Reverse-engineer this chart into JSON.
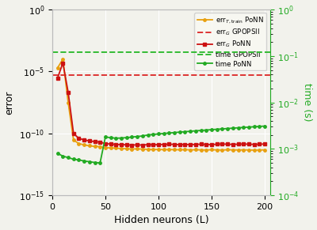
{
  "xlabel": "Hidden neurons (L)",
  "ylabel_left": "error",
  "ylabel_right": "time (s)",
  "xlim": [
    1,
    205
  ],
  "ylim_left": [
    1e-15,
    1.0
  ],
  "ylim_right": [
    0.0001,
    1.0
  ],
  "x_ticks": [
    0,
    50,
    100,
    150,
    200
  ],
  "hidden_neurons": [
    5,
    10,
    15,
    20,
    25,
    30,
    35,
    40,
    45,
    50,
    55,
    60,
    65,
    70,
    75,
    80,
    85,
    90,
    95,
    100,
    105,
    110,
    115,
    120,
    125,
    130,
    135,
    140,
    145,
    150,
    155,
    160,
    165,
    170,
    175,
    180,
    185,
    190,
    195,
    200
  ],
  "err_T_train": [
    2e-05,
    0.0001,
    3e-08,
    3e-11,
    1.5e-11,
    1.2e-11,
    1e-11,
    9e-12,
    8.5e-12,
    7e-12,
    6.8e-12,
    6.5e-12,
    6e-12,
    5.8e-12,
    5.5e-12,
    5.7e-12,
    5.4e-12,
    5.2e-12,
    5e-12,
    5.1e-12,
    4.9e-12,
    5e-12,
    4.9e-12,
    4.8e-12,
    4.9e-12,
    4.7e-12,
    4.8e-12,
    4.7e-12,
    4.6e-12,
    4.8e-12,
    4.7e-12,
    4.6e-12,
    4.8e-12,
    4.7e-12,
    4.6e-12,
    4.7e-12,
    4.6e-12,
    4.5e-12,
    4.6e-12,
    4.7e-12
  ],
  "err_G_PoNN": [
    3e-06,
    5e-05,
    2e-07,
    1e-10,
    4e-11,
    3e-11,
    2.5e-11,
    2.2e-11,
    2e-11,
    1.5e-11,
    1.4e-11,
    1.3e-11,
    1.25e-11,
    1.2e-11,
    1.15e-11,
    1.2e-11,
    1.15e-11,
    1.25e-11,
    1.2e-11,
    1.25e-11,
    1.3e-11,
    1.35e-11,
    1.3e-11,
    1.25e-11,
    1.3e-11,
    1.25e-11,
    1.3e-11,
    1.35e-11,
    1.3e-11,
    1.25e-11,
    1.35e-11,
    1.4e-11,
    1.35e-11,
    1.3e-11,
    1.35e-11,
    1.4e-11,
    1.35e-11,
    1.3e-11,
    1.35e-11,
    1.4e-11
  ],
  "err_G_GPOPSII": 5e-06,
  "time_GPOPSII": 0.12,
  "time_PoNN": [
    0.0008,
    0.0007,
    0.00065,
    0.0006,
    0.00058,
    0.00055,
    0.00053,
    0.00051,
    0.0005,
    0.0018,
    0.00175,
    0.0017,
    0.00172,
    0.00175,
    0.0018,
    0.00185,
    0.0019,
    0.002,
    0.00205,
    0.0021,
    0.00215,
    0.0022,
    0.00225,
    0.0023,
    0.00235,
    0.0024,
    0.00245,
    0.0025,
    0.00255,
    0.0026,
    0.00265,
    0.0027,
    0.00275,
    0.0028,
    0.00285,
    0.0029,
    0.00295,
    0.003,
    0.00305,
    0.0031
  ],
  "color_orange": "#e8a010",
  "color_red": "#cc1111",
  "color_green": "#22aa22",
  "color_red_dashed": "#dd3333",
  "color_green_dashed": "#33bb33",
  "bg_color": "#f2f2ec",
  "grid_color": "#ffffff",
  "spine_color": "#bbbbbb"
}
